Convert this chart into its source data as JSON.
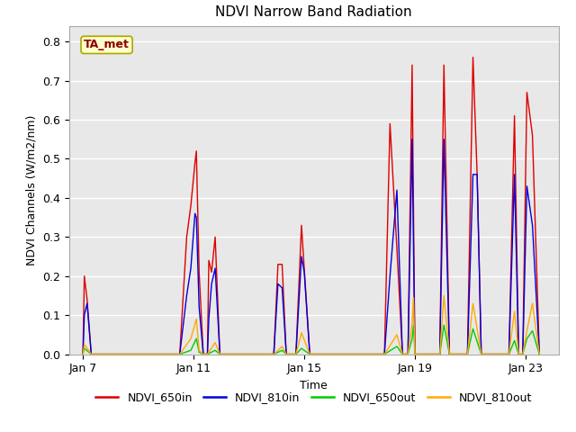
{
  "title": "NDVI Narrow Band Radiation",
  "xlabel": "Time",
  "ylabel": "NDVI Channels (W/m2/nm)",
  "annotation": "TA_met",
  "ylim": [
    0.0,
    0.84
  ],
  "fig_bg_color": "#ffffff",
  "plot_bg_color": "#e8e8e8",
  "series": {
    "NDVI_650in": {
      "color": "#dd0000",
      "peaks": [
        [
          7.0,
          0.0
        ],
        [
          7.05,
          0.2
        ],
        [
          7.15,
          0.14
        ],
        [
          7.3,
          0.0
        ],
        [
          10.5,
          0.0
        ],
        [
          10.75,
          0.3
        ],
        [
          10.9,
          0.38
        ],
        [
          11.05,
          0.49
        ],
        [
          11.1,
          0.52
        ],
        [
          11.2,
          0.21
        ],
        [
          11.35,
          0.0
        ],
        [
          11.5,
          0.0
        ],
        [
          11.55,
          0.24
        ],
        [
          11.65,
          0.21
        ],
        [
          11.78,
          0.3
        ],
        [
          11.95,
          0.0
        ],
        [
          13.9,
          0.0
        ],
        [
          14.05,
          0.23
        ],
        [
          14.2,
          0.23
        ],
        [
          14.35,
          0.0
        ],
        [
          14.7,
          0.0
        ],
        [
          14.9,
          0.33
        ],
        [
          15.0,
          0.22
        ],
        [
          15.2,
          0.0
        ],
        [
          17.9,
          0.0
        ],
        [
          18.1,
          0.59
        ],
        [
          18.35,
          0.27
        ],
        [
          18.55,
          0.0
        ],
        [
          18.75,
          0.0
        ],
        [
          18.9,
          0.74
        ],
        [
          19.0,
          0.0
        ],
        [
          19.9,
          0.0
        ],
        [
          20.05,
          0.74
        ],
        [
          20.25,
          0.0
        ],
        [
          20.9,
          0.0
        ],
        [
          21.1,
          0.76
        ],
        [
          21.25,
          0.46
        ],
        [
          21.4,
          0.0
        ],
        [
          22.4,
          0.0
        ],
        [
          22.6,
          0.61
        ],
        [
          22.75,
          0.0
        ],
        [
          22.9,
          0.0
        ],
        [
          23.05,
          0.67
        ],
        [
          23.25,
          0.56
        ],
        [
          23.5,
          0.0
        ]
      ]
    },
    "NDVI_810in": {
      "color": "#0000dd",
      "peaks": [
        [
          7.0,
          0.0
        ],
        [
          7.05,
          0.1
        ],
        [
          7.15,
          0.13
        ],
        [
          7.3,
          0.0
        ],
        [
          10.5,
          0.0
        ],
        [
          10.75,
          0.15
        ],
        [
          10.9,
          0.22
        ],
        [
          11.05,
          0.36
        ],
        [
          11.1,
          0.35
        ],
        [
          11.2,
          0.12
        ],
        [
          11.35,
          0.0
        ],
        [
          11.5,
          0.0
        ],
        [
          11.55,
          0.09
        ],
        [
          11.65,
          0.18
        ],
        [
          11.78,
          0.22
        ],
        [
          11.95,
          0.0
        ],
        [
          13.9,
          0.0
        ],
        [
          14.05,
          0.18
        ],
        [
          14.2,
          0.17
        ],
        [
          14.35,
          0.0
        ],
        [
          14.7,
          0.0
        ],
        [
          14.9,
          0.25
        ],
        [
          15.0,
          0.21
        ],
        [
          15.2,
          0.0
        ],
        [
          17.9,
          0.0
        ],
        [
          18.1,
          0.2
        ],
        [
          18.35,
          0.42
        ],
        [
          18.55,
          0.0
        ],
        [
          18.75,
          0.0
        ],
        [
          18.9,
          0.55
        ],
        [
          19.0,
          0.0
        ],
        [
          19.9,
          0.0
        ],
        [
          20.05,
          0.55
        ],
        [
          20.25,
          0.0
        ],
        [
          20.9,
          0.0
        ],
        [
          21.1,
          0.46
        ],
        [
          21.25,
          0.46
        ],
        [
          21.4,
          0.0
        ],
        [
          22.4,
          0.0
        ],
        [
          22.6,
          0.46
        ],
        [
          22.75,
          0.0
        ],
        [
          22.9,
          0.0
        ],
        [
          23.05,
          0.43
        ],
        [
          23.25,
          0.33
        ],
        [
          23.5,
          0.0
        ]
      ]
    },
    "NDVI_650out": {
      "color": "#00cc00",
      "peaks": [
        [
          7.0,
          0.0
        ],
        [
          7.05,
          0.015
        ],
        [
          7.3,
          0.0
        ],
        [
          10.5,
          0.0
        ],
        [
          10.9,
          0.01
        ],
        [
          11.1,
          0.04
        ],
        [
          11.2,
          0.005
        ],
        [
          11.35,
          0.0
        ],
        [
          11.5,
          0.0
        ],
        [
          11.78,
          0.01
        ],
        [
          11.95,
          0.0
        ],
        [
          13.9,
          0.0
        ],
        [
          14.2,
          0.01
        ],
        [
          14.35,
          0.0
        ],
        [
          14.7,
          0.0
        ],
        [
          14.9,
          0.015
        ],
        [
          15.2,
          0.0
        ],
        [
          17.9,
          0.0
        ],
        [
          18.35,
          0.02
        ],
        [
          18.55,
          0.0
        ],
        [
          18.75,
          0.0
        ],
        [
          18.9,
          0.04
        ],
        [
          18.95,
          0.075
        ],
        [
          19.0,
          0.0
        ],
        [
          19.9,
          0.0
        ],
        [
          20.05,
          0.075
        ],
        [
          20.25,
          0.0
        ],
        [
          20.9,
          0.0
        ],
        [
          21.1,
          0.065
        ],
        [
          21.4,
          0.0
        ],
        [
          22.4,
          0.0
        ],
        [
          22.6,
          0.035
        ],
        [
          22.75,
          0.0
        ],
        [
          22.9,
          0.0
        ],
        [
          23.05,
          0.04
        ],
        [
          23.25,
          0.06
        ],
        [
          23.5,
          0.0
        ]
      ]
    },
    "NDVI_810out": {
      "color": "#ffaa00",
      "peaks": [
        [
          7.0,
          0.0
        ],
        [
          7.05,
          0.025
        ],
        [
          7.3,
          0.0
        ],
        [
          10.5,
          0.0
        ],
        [
          10.9,
          0.04
        ],
        [
          11.1,
          0.09
        ],
        [
          11.2,
          0.01
        ],
        [
          11.35,
          0.0
        ],
        [
          11.5,
          0.0
        ],
        [
          11.78,
          0.03
        ],
        [
          11.95,
          0.0
        ],
        [
          13.9,
          0.0
        ],
        [
          14.2,
          0.02
        ],
        [
          14.35,
          0.0
        ],
        [
          14.7,
          0.0
        ],
        [
          14.9,
          0.055
        ],
        [
          15.2,
          0.0
        ],
        [
          17.9,
          0.0
        ],
        [
          18.35,
          0.05
        ],
        [
          18.55,
          0.0
        ],
        [
          18.75,
          0.0
        ],
        [
          18.9,
          0.08
        ],
        [
          18.95,
          0.145
        ],
        [
          19.0,
          0.0
        ],
        [
          19.9,
          0.0
        ],
        [
          20.05,
          0.15
        ],
        [
          20.25,
          0.0
        ],
        [
          20.9,
          0.0
        ],
        [
          21.1,
          0.13
        ],
        [
          21.4,
          0.0
        ],
        [
          22.4,
          0.0
        ],
        [
          22.6,
          0.11
        ],
        [
          22.75,
          0.0
        ],
        [
          22.9,
          0.0
        ],
        [
          23.05,
          0.06
        ],
        [
          23.25,
          0.13
        ],
        [
          23.5,
          0.0
        ]
      ]
    }
  },
  "xticks": {
    "positions": [
      7,
      11,
      15,
      19,
      23
    ],
    "labels": [
      "Jan 7",
      "Jan 11",
      "Jan 15",
      "Jan 19",
      "Jan 23"
    ]
  },
  "yticks": [
    0.0,
    0.1,
    0.2,
    0.3,
    0.4,
    0.5,
    0.6,
    0.7,
    0.8
  ],
  "legend_order": [
    "NDVI_650in",
    "NDVI_810in",
    "NDVI_650out",
    "NDVI_810out"
  ],
  "xlim": [
    6.5,
    24.2
  ]
}
